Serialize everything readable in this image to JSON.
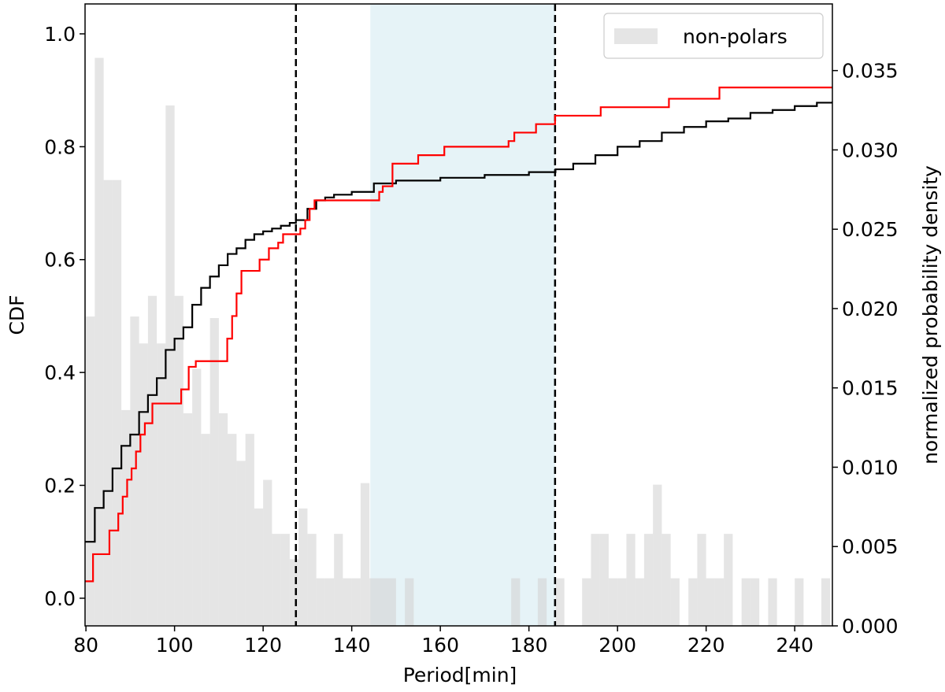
{
  "chart_data": {
    "type": "step",
    "xlabel": "Period[min]",
    "ylabel": "CDF",
    "y2label": "normalized probability density",
    "xlim": [
      79.8,
      248.5
    ],
    "ylim": [
      -0.049,
      1.053
    ],
    "y2lim": [
      0,
      0.0392
    ],
    "xticks": [
      80,
      100,
      120,
      140,
      160,
      180,
      200,
      220,
      240
    ],
    "yticks": [
      {
        "value": 0,
        "label": "0.0"
      },
      0.2,
      0.4,
      0.6,
      0.8,
      {
        "value": 1,
        "label": "1.0"
      }
    ],
    "y2ticks": [
      {
        "value": 0,
        "label": "0.000"
      },
      {
        "value": 0.005,
        "label": "0.005"
      },
      {
        "value": 0.01,
        "label": "0.010"
      },
      {
        "value": 0.015,
        "label": "0.015"
      },
      {
        "value": 0.02,
        "label": "0.020"
      },
      {
        "value": 0.025,
        "label": "0.025"
      },
      {
        "value": 0.03,
        "label": "0.030"
      },
      {
        "value": 0.035,
        "label": "0.035"
      }
    ],
    "span": [
      144.2,
      185.9
    ],
    "span_color": "#add8e6",
    "vlines": [
      127.4,
      185.9
    ],
    "vline_color": "#000000",
    "legend": "upper right",
    "histogram": {
      "name": "non-polars",
      "color": "#d3d3d3",
      "axis": "y2",
      "bins": [
        80,
        82,
        84,
        86,
        88,
        90,
        92,
        94,
        96,
        98,
        100,
        102,
        104,
        106,
        108,
        110,
        112,
        114,
        116,
        118,
        120,
        122,
        124,
        126,
        128,
        130,
        132,
        134,
        136,
        138,
        140,
        142,
        144,
        146,
        148,
        150,
        152,
        154,
        156,
        158,
        160,
        162,
        164,
        166,
        168,
        170,
        172,
        174,
        176,
        178,
        180,
        182,
        184,
        186,
        188,
        190,
        192,
        194,
        196,
        198,
        200,
        202,
        204,
        206,
        208,
        210,
        212,
        214,
        216,
        218,
        220,
        222,
        224,
        226,
        228,
        230,
        232,
        234,
        236,
        238,
        240,
        242,
        244,
        246,
        248
      ],
      "values": [
        0.0195,
        0.0358,
        0.0281,
        0.0281,
        0.0136,
        0.0195,
        0.0178,
        0.0208,
        0.0178,
        0.0328,
        0.0208,
        0.0134,
        0.0162,
        0.0121,
        0.0194,
        0.0134,
        0.0121,
        0.0104,
        0.0121,
        0.0074,
        0.0092,
        0.0058,
        0.0058,
        0.0042,
        0.0074,
        0.0058,
        0.003,
        0.003,
        0.0058,
        0.003,
        0.003,
        0.009,
        0.003,
        0.003,
        0.003,
        0,
        0.003,
        0,
        0,
        0,
        0,
        0,
        0,
        0,
        0,
        0,
        0,
        0,
        0.003,
        0,
        0,
        0.003,
        0,
        0.003,
        0,
        0,
        0.003,
        0.0058,
        0.0058,
        0.003,
        0.003,
        0.0058,
        0.003,
        0.0058,
        0.0089,
        0.0058,
        0.003,
        0,
        0.003,
        0.0058,
        0.003,
        0.003,
        0.0058,
        0,
        0.003,
        0.003,
        0,
        0.003,
        0,
        0,
        0.003,
        0,
        0,
        0.003
      ]
    },
    "series": [
      {
        "color": "#000000",
        "x": [
          79.8,
          82,
          84,
          86,
          88,
          90,
          92,
          94,
          96,
          98,
          100,
          102,
          104,
          106,
          108,
          110,
          112,
          114,
          116,
          118,
          120,
          122,
          124,
          126,
          127.4,
          130,
          132,
          134,
          136,
          140,
          145,
          150,
          160,
          170,
          180,
          186,
          190,
          195,
          200,
          205,
          210,
          215,
          220,
          225,
          230,
          235,
          240,
          245,
          248.5
        ],
        "values": [
          0.1,
          0.16,
          0.19,
          0.23,
          0.27,
          0.29,
          0.33,
          0.36,
          0.39,
          0.44,
          0.46,
          0.48,
          0.52,
          0.55,
          0.57,
          0.59,
          0.61,
          0.62,
          0.635,
          0.645,
          0.65,
          0.655,
          0.66,
          0.665,
          0.67,
          0.69,
          0.705,
          0.71,
          0.715,
          0.72,
          0.735,
          0.74,
          0.745,
          0.75,
          0.755,
          0.76,
          0.77,
          0.785,
          0.8,
          0.81,
          0.825,
          0.835,
          0.845,
          0.85,
          0.86,
          0.865,
          0.872,
          0.878,
          0.88
        ]
      },
      {
        "color": "#ff0000",
        "x": [
          79.8,
          81.6,
          85.3,
          87.3,
          88.3,
          89.3,
          90.3,
          91.3,
          92.3,
          93.3,
          95,
          101.5,
          103.2,
          104.8,
          111.9,
          113,
          114,
          115.1,
          119.2,
          121.3,
          123.4,
          124.5,
          128.4,
          129.5,
          130.5,
          131.6,
          146.2,
          147,
          149.2,
          155,
          160.9,
          175.4,
          176.7,
          181.6,
          185.9,
          196.2,
          211.6,
          223,
          248.5
        ],
        "values": [
          0.03,
          0.078,
          0.12,
          0.15,
          0.18,
          0.21,
          0.23,
          0.26,
          0.29,
          0.31,
          0.345,
          0.37,
          0.41,
          0.42,
          0.46,
          0.5,
          0.54,
          0.58,
          0.6,
          0.62,
          0.63,
          0.645,
          0.655,
          0.67,
          0.69,
          0.705,
          0.72,
          0.73,
          0.77,
          0.785,
          0.8,
          0.81,
          0.825,
          0.84,
          0.855,
          0.87,
          0.885,
          0.905,
          0.905
        ]
      }
    ]
  }
}
